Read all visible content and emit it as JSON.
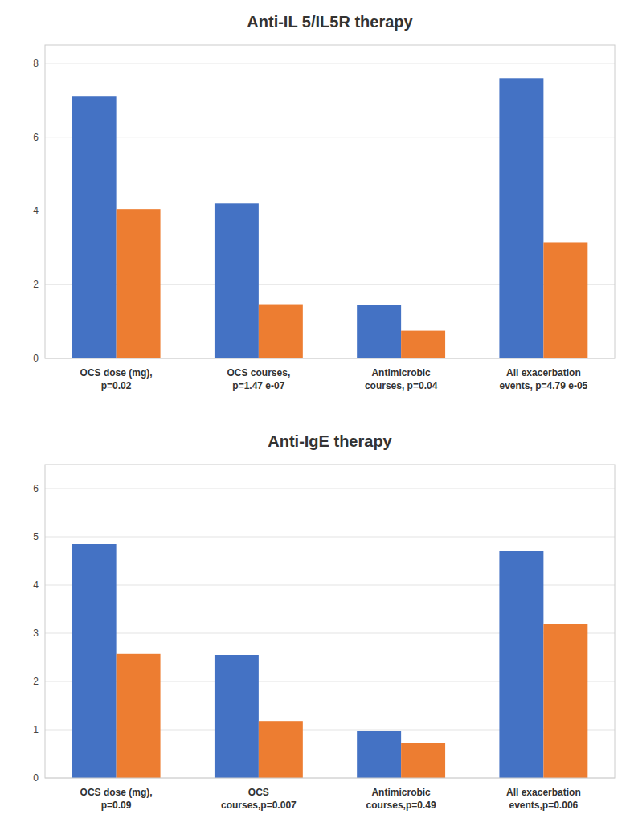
{
  "chart_data": [
    {
      "type": "bar",
      "title": "Anti-IL 5/IL5R therapy",
      "categories": [
        "OCS dose (mg),\np=0.02",
        "OCS courses,\np=1.47 e-07",
        "Antimicrobic\ncourses, p=0.04",
        "All exacerbation\nevents, p=4.79 e-05"
      ],
      "series": [
        {
          "color": "#4472C4",
          "values": [
            7.1,
            4.2,
            1.45,
            7.6
          ]
        },
        {
          "color": "#ED7D31",
          "values": [
            4.05,
            1.47,
            0.75,
            3.15
          ]
        }
      ],
      "ylim": [
        0,
        8.5
      ],
      "yticks": [
        0,
        2,
        4,
        6,
        8
      ],
      "grid": true
    },
    {
      "type": "bar",
      "title": "Anti-IgE therapy",
      "categories": [
        "OCS dose (mg),\np=0.09",
        "OCS\ncourses,p=0.007",
        "Antimicrobic\ncourses,p=0.49",
        "All exacerbation\nevents,p=0.006"
      ],
      "series": [
        {
          "color": "#4472C4",
          "values": [
            4.85,
            2.55,
            0.97,
            4.7
          ]
        },
        {
          "color": "#ED7D31",
          "values": [
            2.57,
            1.18,
            0.73,
            3.2
          ]
        }
      ],
      "ylim": [
        0,
        6.5
      ],
      "yticks": [
        0,
        1,
        2,
        3,
        4,
        5,
        6
      ],
      "grid": true
    }
  ]
}
